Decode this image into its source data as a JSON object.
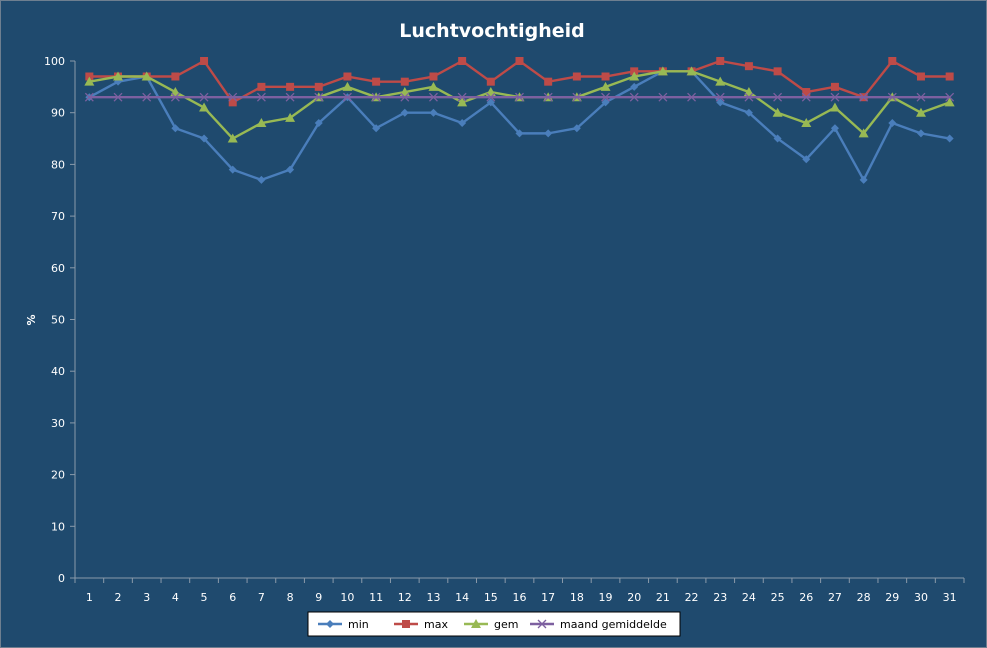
{
  "chart_data": {
    "type": "line",
    "title": "Luchtvochtigheid",
    "xlabel": "",
    "ylabel": "%",
    "ylim": [
      0,
      100
    ],
    "yticks": [
      0,
      10,
      20,
      30,
      40,
      50,
      60,
      70,
      80,
      90,
      100
    ],
    "categories": [
      "1",
      "2",
      "3",
      "4",
      "5",
      "6",
      "7",
      "8",
      "9",
      "10",
      "11",
      "12",
      "13",
      "14",
      "15",
      "16",
      "17",
      "18",
      "19",
      "20",
      "21",
      "22",
      "23",
      "24",
      "25",
      "26",
      "27",
      "28",
      "29",
      "30",
      "31"
    ],
    "grid": false,
    "legend": "bottom",
    "series": [
      {
        "name": "min",
        "color": "#4a7ebb",
        "marker": "diamond",
        "values": [
          93,
          96,
          97,
          87,
          85,
          79,
          77,
          79,
          88,
          93,
          87,
          90,
          90,
          88,
          92,
          86,
          86,
          87,
          92,
          95,
          98,
          98,
          92,
          90,
          85,
          81,
          87,
          77,
          88,
          86,
          85
        ]
      },
      {
        "name": "max",
        "color": "#be4b48",
        "marker": "square",
        "values": [
          97,
          97,
          97,
          97,
          100,
          92,
          95,
          95,
          95,
          97,
          96,
          96,
          97,
          100,
          96,
          100,
          96,
          97,
          97,
          98,
          98,
          98,
          100,
          99,
          98,
          94,
          95,
          93,
          100,
          97,
          97
        ]
      },
      {
        "name": "gem",
        "color": "#98b954",
        "marker": "triangle",
        "values": [
          96,
          97,
          97,
          94,
          91,
          85,
          88,
          89,
          93,
          95,
          93,
          94,
          95,
          92,
          94,
          93,
          93,
          93,
          95,
          97,
          98,
          98,
          96,
          94,
          90,
          88,
          91,
          86,
          93,
          90,
          92
        ]
      },
      {
        "name": "maand gemiddelde",
        "color": "#7d60a0",
        "marker": "x",
        "values": [
          93,
          93,
          93,
          93,
          93,
          93,
          93,
          93,
          93,
          93,
          93,
          93,
          93,
          93,
          93,
          93,
          93,
          93,
          93,
          93,
          93,
          93,
          93,
          93,
          93,
          93,
          93,
          93,
          93,
          93,
          93
        ]
      }
    ]
  }
}
